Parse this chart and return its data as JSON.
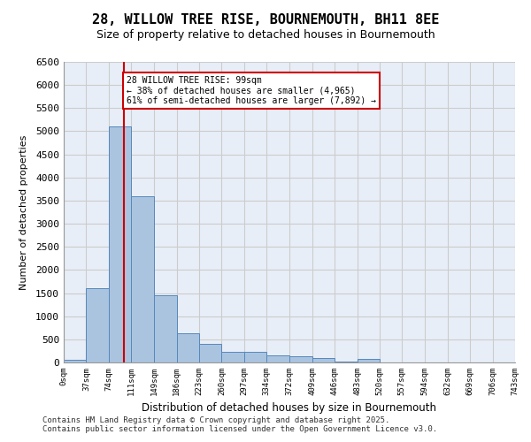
{
  "title_line1": "28, WILLOW TREE RISE, BOURNEMOUTH, BH11 8EE",
  "title_line2": "Size of property relative to detached houses in Bournemouth",
  "xlabel": "Distribution of detached houses by size in Bournemouth",
  "ylabel": "Number of detached properties",
  "footer_line1": "Contains HM Land Registry data © Crown copyright and database right 2025.",
  "footer_line2": "Contains public sector information licensed under the Open Government Licence v3.0.",
  "subject_size": 99,
  "annotation_title": "28 WILLOW TREE RISE: 99sqm",
  "annotation_line1": "← 38% of detached houses are smaller (4,965)",
  "annotation_line2": "61% of semi-detached houses are larger (7,892) →",
  "bin_edges": [
    0,
    37,
    74,
    111,
    149,
    186,
    223,
    260,
    297,
    334,
    372,
    409,
    446,
    483,
    520,
    557,
    594,
    632,
    669,
    706,
    743
  ],
  "bar_heights": [
    50,
    1600,
    5100,
    3600,
    1450,
    630,
    400,
    220,
    220,
    150,
    130,
    100,
    20,
    80,
    0,
    0,
    0,
    0,
    0,
    0
  ],
  "bar_color": "#aac4e0",
  "bar_edge_color": "#5588bb",
  "line_color": "#cc0000",
  "annotation_box_color": "#cc0000",
  "grid_color": "#cccccc",
  "background_color": "#e8eef8",
  "ylim": [
    0,
    6500
  ],
  "yticks": [
    0,
    500,
    1000,
    1500,
    2000,
    2500,
    3000,
    3500,
    4000,
    4500,
    5000,
    5500,
    6000,
    6500
  ]
}
